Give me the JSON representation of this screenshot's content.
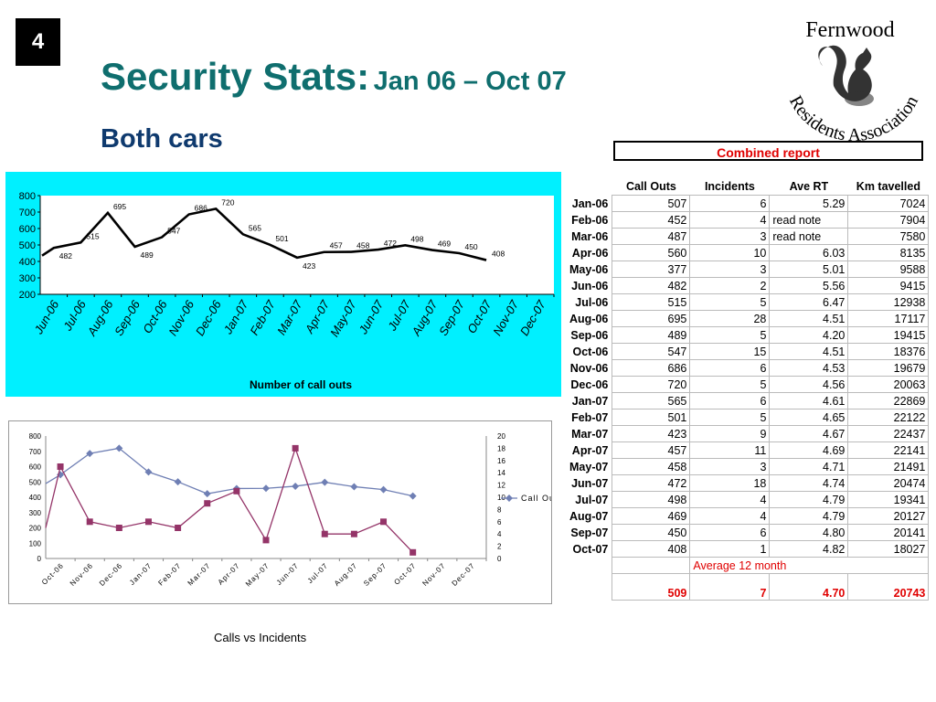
{
  "slide_number": "4",
  "title": {
    "main": "Security Stats:",
    "sub": "Jan 06 – Oct 07"
  },
  "subtitle": "Both cars",
  "logo": {
    "top_text": "Fernwood",
    "arc_text": "Residents Association"
  },
  "combined_report_label": "Combined report",
  "table": {
    "headers": [
      "Call Outs",
      "Incidents",
      "Ave RT",
      "Km tavelled"
    ],
    "rows": [
      [
        "Jan-06",
        "507",
        "6",
        "5.29",
        "7024"
      ],
      [
        "Feb-06",
        "452",
        "4",
        "read note",
        "7904"
      ],
      [
        "Mar-06",
        "487",
        "3",
        "read note",
        "7580"
      ],
      [
        "Apr-06",
        "560",
        "10",
        "6.03",
        "8135"
      ],
      [
        "May-06",
        "377",
        "3",
        "5.01",
        "9588"
      ],
      [
        "Jun-06",
        "482",
        "2",
        "5.56",
        "9415"
      ],
      [
        "Jul-06",
        "515",
        "5",
        "6.47",
        "12938"
      ],
      [
        "Aug-06",
        "695",
        "28",
        "4.51",
        "17117"
      ],
      [
        "Sep-06",
        "489",
        "5",
        "4.20",
        "19415"
      ],
      [
        "Oct-06",
        "547",
        "15",
        "4.51",
        "18376"
      ],
      [
        "Nov-06",
        "686",
        "6",
        "4.53",
        "19679"
      ],
      [
        "Dec-06",
        "720",
        "5",
        "4.56",
        "20063"
      ],
      [
        "Jan-07",
        "565",
        "6",
        "4.61",
        "22869"
      ],
      [
        "Feb-07",
        "501",
        "5",
        "4.65",
        "22122"
      ],
      [
        "Mar-07",
        "423",
        "9",
        "4.67",
        "22437"
      ],
      [
        "Apr-07",
        "457",
        "11",
        "4.69",
        "22141"
      ],
      [
        "May-07",
        "458",
        "3",
        "4.71",
        "21491"
      ],
      [
        "Jun-07",
        "472",
        "18",
        "4.74",
        "20474"
      ],
      [
        "Jul-07",
        "498",
        "4",
        "4.79",
        "19341"
      ],
      [
        "Aug-07",
        "469",
        "4",
        "4.79",
        "20127"
      ],
      [
        "Sep-07",
        "450",
        "6",
        "4.80",
        "20141"
      ],
      [
        "Oct-07",
        "408",
        "1",
        "4.82",
        "18027"
      ]
    ],
    "average_label": "Average 12 month",
    "average_values": [
      "509",
      "7",
      "4.70",
      "20743"
    ]
  },
  "caption": "Calls vs Incidents",
  "chart_data": [
    {
      "type": "line",
      "xlabel": "Number of call outs",
      "ylim": [
        200,
        800
      ],
      "yticks": [
        200,
        300,
        400,
        500,
        600,
        700,
        800
      ],
      "grid": false,
      "categories": [
        "Jun-06",
        "Jul-06",
        "Aug-06",
        "Sep-06",
        "Oct-06",
        "Nov-06",
        "Dec-06",
        "Jan-07",
        "Feb-07",
        "Mar-07",
        "Apr-07",
        "May-07",
        "Jun-07",
        "Jul-07",
        "Aug-07",
        "Sep-07",
        "Oct-07",
        "Nov-07",
        "Dec-07"
      ],
      "x": [
        "Jun-06",
        "Jun-06",
        "Jul-06",
        "Aug-06",
        "Sep-06",
        "Oct-06",
        "Nov-06",
        "Dec-06",
        "Jan-07",
        "Feb-07",
        "Mar-07",
        "Apr-07",
        "May-07",
        "Jun-07",
        "Jul-07",
        "Aug-07",
        "Sep-07",
        "Oct-07"
      ],
      "values": [
        435,
        482,
        515,
        695,
        489,
        547,
        686,
        720,
        565,
        501,
        423,
        457,
        458,
        472,
        498,
        469,
        450,
        408
      ],
      "labels": [
        "",
        "482",
        "515",
        "695",
        "489",
        "547",
        "686",
        "720",
        "565",
        "501",
        "423",
        "457",
        "458",
        "472",
        "498",
        "469",
        "450",
        "408"
      ],
      "color": "#000000"
    },
    {
      "type": "line",
      "title": "",
      "categories": [
        "Oct-06",
        "Nov-06",
        "Dec-06",
        "Jan-07",
        "Feb-07",
        "Mar-07",
        "Apr-07",
        "May-07",
        "Jun-07",
        "Jul-07",
        "Aug-07",
        "Sep-07",
        "Oct-07",
        "Nov-07",
        "Dec-07"
      ],
      "ylim_left": [
        0,
        800
      ],
      "yticks_left": [
        0,
        100,
        200,
        300,
        400,
        500,
        600,
        700,
        800
      ],
      "ylim_right": [
        0,
        20
      ],
      "yticks_right": [
        0,
        2,
        4,
        6,
        8,
        10,
        12,
        14,
        16,
        18,
        20
      ],
      "legend": "right",
      "series": [
        {
          "name": "Call Outs",
          "axis": "left",
          "color": "#6f7fb4",
          "marker": "diamond",
          "x": [
            "Sep-06",
            "Oct-06",
            "Nov-06",
            "Dec-06",
            "Jan-07",
            "Feb-07",
            "Mar-07",
            "Apr-07",
            "May-07",
            "Jun-07",
            "Jul-07",
            "Aug-07",
            "Sep-07",
            "Oct-07"
          ],
          "values": [
            489,
            547,
            686,
            720,
            565,
            501,
            423,
            457,
            458,
            472,
            498,
            469,
            450,
            408
          ]
        },
        {
          "name": "",
          "axis": "right",
          "color": "#943468",
          "marker": "square",
          "x": [
            "Sep-06",
            "Oct-06",
            "Nov-06",
            "Dec-06",
            "Jan-07",
            "Feb-07",
            "Mar-07",
            "Apr-07",
            "May-07",
            "Jun-07",
            "Jul-07",
            "Aug-07",
            "Sep-07",
            "Oct-07"
          ],
          "values": [
            5,
            15,
            6,
            5,
            6,
            5,
            9,
            11,
            3,
            18,
            4,
            4,
            6,
            1
          ]
        }
      ]
    }
  ]
}
